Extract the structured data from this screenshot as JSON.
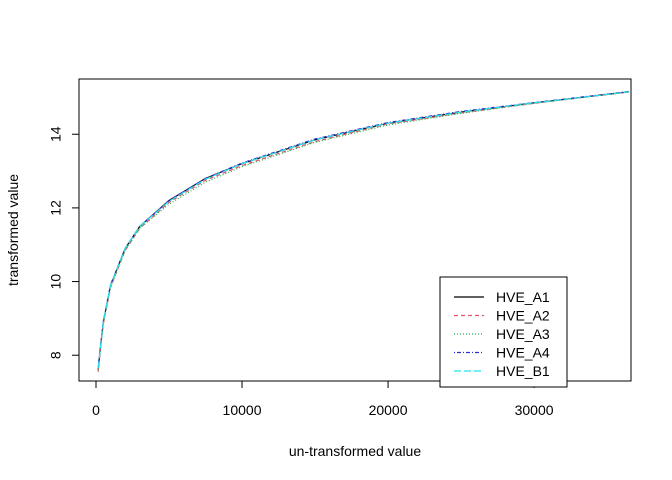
{
  "chart_data": {
    "type": "line",
    "title": "",
    "xlabel": "un-transformed value",
    "ylabel": "transformed value",
    "xlim": [
      0,
      36500
    ],
    "ylim": [
      7.3,
      15.5
    ],
    "xticks": [
      0,
      10000,
      20000,
      30000
    ],
    "yticks": [
      8,
      10,
      12,
      14
    ],
    "legend_position": "bottom-right",
    "grid": false,
    "x": [
      150,
      300,
      500,
      1000,
      2000,
      3000,
      5000,
      7500,
      10000,
      15000,
      20000,
      25000,
      30000,
      36500
    ],
    "series": [
      {
        "name": "HVE_A1",
        "color": "#000000",
        "dash": "solid",
        "values": [
          7.6,
          8.2,
          8.9,
          9.9,
          10.9,
          11.5,
          12.2,
          12.8,
          13.2,
          13.85,
          14.3,
          14.6,
          14.85,
          15.15
        ]
      },
      {
        "name": "HVE_A2",
        "color": "#DF536B",
        "dash": "dashed",
        "values": [
          7.55,
          8.15,
          8.85,
          9.85,
          10.85,
          11.45,
          12.15,
          12.75,
          13.15,
          13.8,
          14.28,
          14.58,
          14.84,
          15.15
        ]
      },
      {
        "name": "HVE_A3",
        "color": "#22B14C",
        "dash": "dotted",
        "values": [
          7.6,
          8.18,
          8.85,
          9.85,
          10.85,
          11.45,
          12.1,
          12.7,
          13.12,
          13.78,
          14.25,
          14.57,
          14.84,
          15.15
        ]
      },
      {
        "name": "HVE_A4",
        "color": "#2D2DD6",
        "dash": "dotdash",
        "values": [
          7.7,
          8.25,
          8.92,
          9.92,
          10.9,
          11.5,
          12.2,
          12.8,
          13.22,
          13.87,
          14.32,
          14.62,
          14.86,
          15.16
        ]
      },
      {
        "name": "HVE_B1",
        "color": "#28E2E5",
        "dash": "longdash",
        "values": [
          7.65,
          8.2,
          8.9,
          9.9,
          10.9,
          11.5,
          12.18,
          12.78,
          13.2,
          13.85,
          14.3,
          14.6,
          14.85,
          15.15
        ]
      }
    ]
  }
}
